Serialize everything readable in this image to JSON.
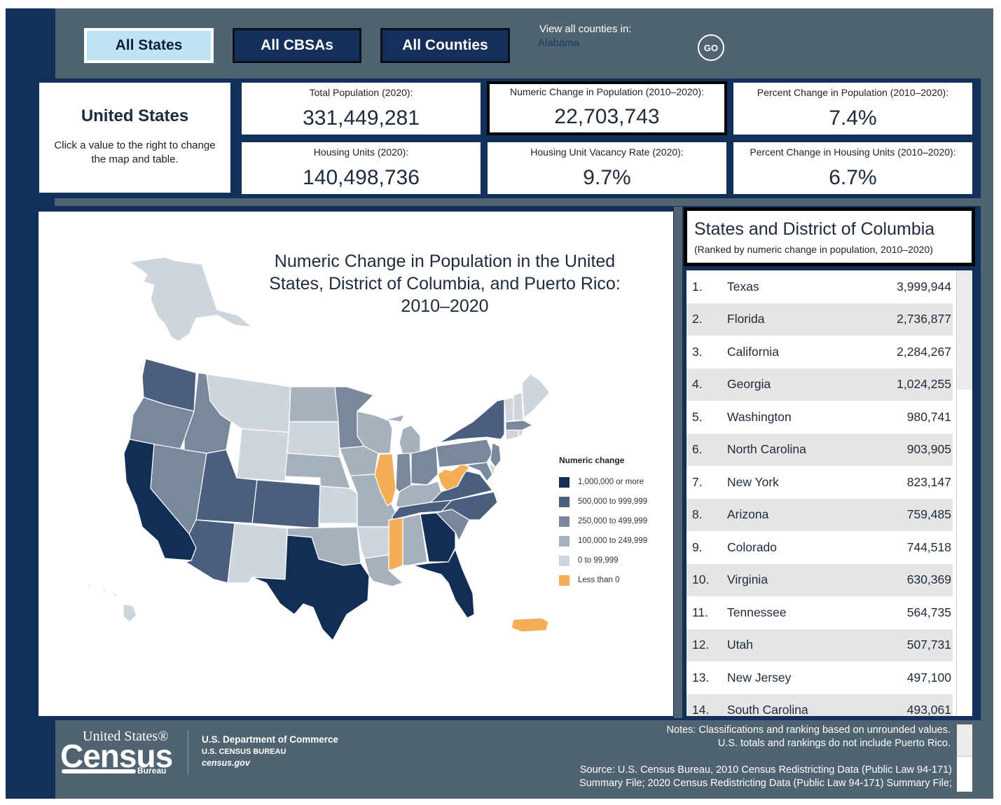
{
  "nav": {
    "all_states": "All States",
    "all_cbsas": "All CBSAs",
    "all_counties": "All Counties",
    "county_label": "View all counties in:",
    "county_selected": "Alabama",
    "go_label": "GO"
  },
  "summary": {
    "title": "United States",
    "hint": "Click a value to the right to change the map and table."
  },
  "stats": [
    {
      "label": "Total Population (2020):",
      "value": "331,449,281"
    },
    {
      "label": "Numeric Change in Population (2010–2020):",
      "value": "22,703,743"
    },
    {
      "label": "Percent Change in Population (2010–2020):",
      "value": "7.4%"
    },
    {
      "label": "Housing Units (2020):",
      "value": "140,498,736"
    },
    {
      "label": "Housing Unit Vacancy Rate (2020):",
      "value": "9.7%"
    },
    {
      "label": "Percent Change in Housing Units (2010–2020):",
      "value": "6.7%"
    }
  ],
  "map": {
    "title": "Numeric Change in Population in the United States, District of Columbia, and Puerto Rico: 2010–2020",
    "legend_title": "Numeric change",
    "legend": [
      {
        "label": "1,000,000 or more",
        "color": "#132e55"
      },
      {
        "label": "500,000 to 999,999",
        "color": "#4a5f7f"
      },
      {
        "label": "250,000 to 499,999",
        "color": "#7a889e"
      },
      {
        "label": "100,000 to 249,999",
        "color": "#a7b0bd"
      },
      {
        "label": "0 to 99,999",
        "color": "#cfd5dc"
      },
      {
        "label": "Less than 0",
        "color": "#f5ae58"
      }
    ]
  },
  "table": {
    "title": "States and District of Columbia",
    "subtitle": "(Ranked by numeric change in population, 2010–2020)",
    "rows": [
      {
        "rank": "1.",
        "name": "Texas",
        "value": "3,999,944"
      },
      {
        "rank": "2.",
        "name": "Florida",
        "value": "2,736,877"
      },
      {
        "rank": "3.",
        "name": "California",
        "value": "2,284,267"
      },
      {
        "rank": "4.",
        "name": "Georgia",
        "value": "1,024,255"
      },
      {
        "rank": "5.",
        "name": "Washington",
        "value": "980,741"
      },
      {
        "rank": "6.",
        "name": "North Carolina",
        "value": "903,905"
      },
      {
        "rank": "7.",
        "name": "New York",
        "value": "823,147"
      },
      {
        "rank": "8.",
        "name": "Arizona",
        "value": "759,485"
      },
      {
        "rank": "9.",
        "name": "Colorado",
        "value": "744,518"
      },
      {
        "rank": "10.",
        "name": "Virginia",
        "value": "630,369"
      },
      {
        "rank": "11.",
        "name": "Tennessee",
        "value": "564,735"
      },
      {
        "rank": "12.",
        "name": "Utah",
        "value": "507,731"
      },
      {
        "rank": "13.",
        "name": "New Jersey",
        "value": "497,100"
      },
      {
        "rank": "14.",
        "name": "South Carolina",
        "value": "493,061"
      }
    ]
  },
  "footer": {
    "logo_us": "United States®",
    "logo_census": "Census",
    "logo_bureau": "Bureau",
    "dept": "U.S. Department of Commerce",
    "bureau": "U.S. CENSUS BUREAU",
    "site": "census.gov",
    "notes_1": "Notes: Classifications and ranking based on unrounded values.",
    "notes_2": "U.S. totals and rankings do not include Puerto Rico.",
    "source_1": "Source: U.S. Census Bureau, 2010 Census Redistricting Data (Public Law 94-171)",
    "source_2": "Summary File; 2020 Census Redistricting Data (Public Law 94-171) Summary File;"
  }
}
